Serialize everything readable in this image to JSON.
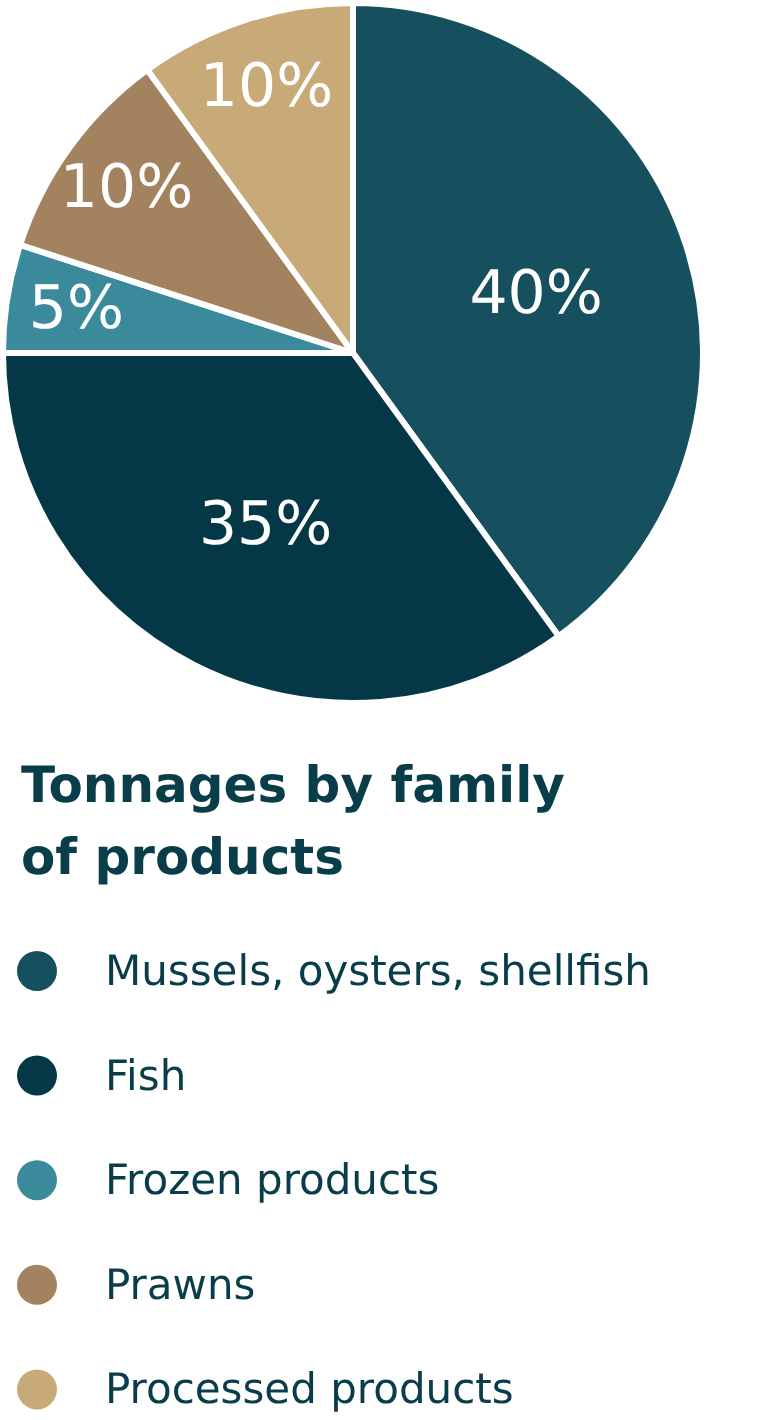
{
  "chart_data": {
    "type": "pie",
    "title": "Tonnages by family of products",
    "categories": [
      "Mussels, oysters, shellfish",
      "Fish",
      "Frozen products",
      "Prawns",
      "Processed products"
    ],
    "values": [
      40,
      35,
      5,
      10,
      10
    ],
    "colors": [
      "#16505f",
      "#053846",
      "#3a8a9c",
      "#a3825f",
      "#c8a978"
    ],
    "value_labels": [
      "40%",
      "35%",
      "5%",
      "10%",
      "10%"
    ],
    "legend": "bottom"
  }
}
